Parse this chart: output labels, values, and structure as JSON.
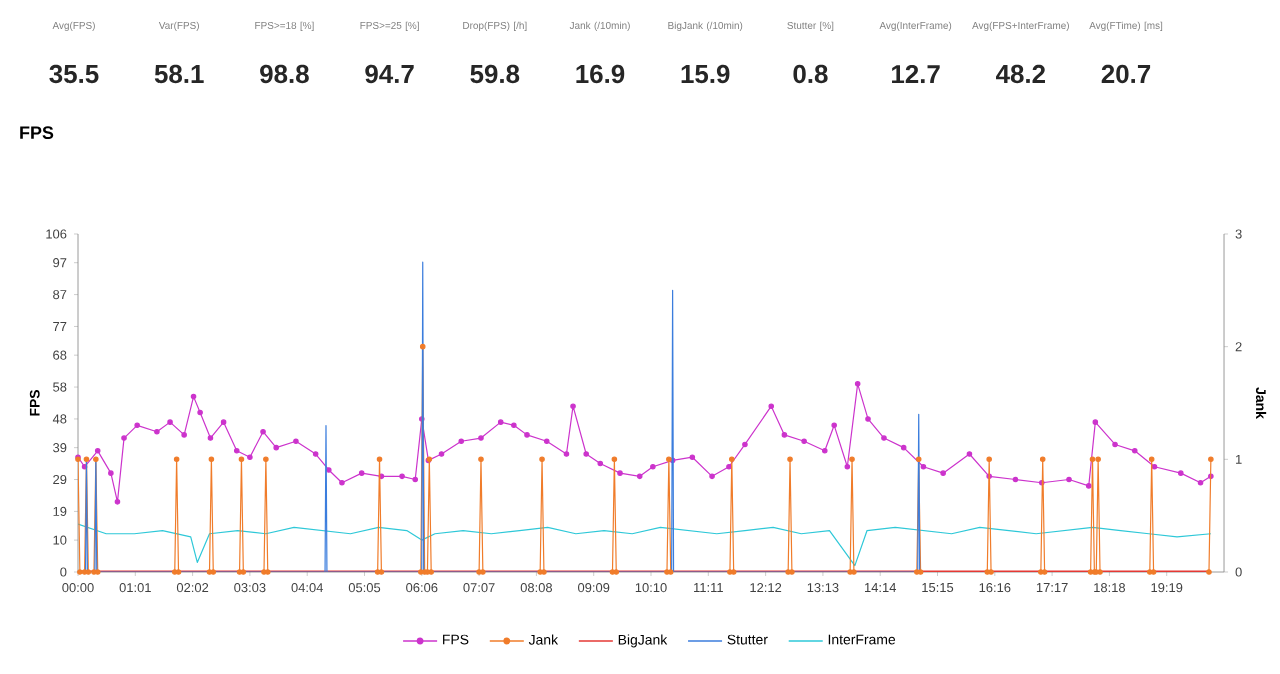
{
  "chart_data": [
    {
      "type": "other",
      "categories": [
        "Avg(FPS)",
        "Var(FPS)",
        "FPS>=18 [%]",
        "FPS>=25 [%]",
        "Drop(FPS) [/h]",
        "Jank (/10min)",
        "BigJank (/10min)",
        "Stutter [%]",
        "Avg(InterFrame)",
        "Avg(FPS+InterFrame)",
        "Avg(FTime) [ms]"
      ],
      "values": [
        35.5,
        58.1,
        98.8,
        94.7,
        59.8,
        16.9,
        15.9,
        0.8,
        12.7,
        48.2,
        20.7
      ],
      "data_labels": true
    },
    {
      "type": "line",
      "title": "FPS",
      "ylabel": "FPS",
      "y2label": "Jank",
      "xlim": [
        0,
        1220
      ],
      "ylim": [
        0,
        106
      ],
      "y2lim": [
        0,
        3
      ],
      "xticks": [
        {
          "value": 0,
          "label": "00:00"
        },
        {
          "value": 61,
          "label": "01:01"
        },
        {
          "value": 122,
          "label": "02:02"
        },
        {
          "value": 183,
          "label": "03:03"
        },
        {
          "value": 244,
          "label": "04:04"
        },
        {
          "value": 305,
          "label": "05:05"
        },
        {
          "value": 366,
          "label": "06:06"
        },
        {
          "value": 427,
          "label": "07:07"
        },
        {
          "value": 488,
          "label": "08:08"
        },
        {
          "value": 549,
          "label": "09:09"
        },
        {
          "value": 610,
          "label": "10:10"
        },
        {
          "value": 671,
          "label": "11:11"
        },
        {
          "value": 732,
          "label": "12:12"
        },
        {
          "value": 793,
          "label": "13:13"
        },
        {
          "value": 854,
          "label": "14:14"
        },
        {
          "value": 915,
          "label": "15:15"
        },
        {
          "value": 976,
          "label": "16:16"
        },
        {
          "value": 1037,
          "label": "17:17"
        },
        {
          "value": 1098,
          "label": "18:18"
        },
        {
          "value": 1159,
          "label": "19:19"
        }
      ],
      "yticks": [
        0,
        10,
        19,
        29,
        39,
        48,
        58,
        68,
        77,
        87,
        97,
        106
      ],
      "y2ticks": [
        0,
        1,
        2,
        3
      ],
      "legend": "bottom",
      "series": [
        {
          "name": "FPS",
          "color": "#cc33cc",
          "marker": "circle",
          "x": [
            0,
            7,
            21,
            35,
            42,
            49,
            63,
            84,
            98,
            113,
            123,
            130,
            141,
            155,
            169,
            183,
            197,
            211,
            232,
            253,
            267,
            281,
            302,
            323,
            345,
            359,
            366,
            373,
            387,
            408,
            429,
            450,
            464,
            478,
            499,
            520,
            527,
            541,
            556,
            577,
            598,
            612,
            633,
            654,
            675,
            693,
            710,
            738,
            752,
            773,
            795,
            805,
            819,
            830,
            841,
            858,
            879,
            900,
            921,
            949,
            970,
            998,
            1026,
            1055,
            1076,
            1083,
            1104,
            1125,
            1146,
            1174,
            1195,
            1206
          ],
          "values": [
            36,
            33,
            38,
            31,
            22,
            42,
            46,
            44,
            47,
            43,
            55,
            50,
            42,
            47,
            38,
            36,
            44,
            39,
            41,
            37,
            32,
            28,
            31,
            30,
            30,
            29,
            48,
            35,
            37,
            41,
            42,
            47,
            46,
            43,
            41,
            37,
            52,
            37,
            34,
            31,
            30,
            33,
            35,
            36,
            30,
            33,
            40,
            52,
            43,
            41,
            38,
            46,
            33,
            59,
            48,
            42,
            39,
            33,
            31,
            37,
            30,
            29,
            28,
            29,
            27,
            47,
            40,
            38,
            33,
            31,
            28,
            30
          ]
        },
        {
          "name": "Jank",
          "color": "#f07c2a",
          "marker": "circle",
          "axis": "y2",
          "x": [
            0,
            2,
            7,
            9,
            11,
            17,
            19,
            21,
            103,
            105,
            107,
            140,
            142,
            144,
            172,
            174,
            176,
            198,
            200,
            202,
            319,
            321,
            323,
            365,
            367,
            369,
            372,
            374,
            376,
            427,
            429,
            431,
            492,
            494,
            496,
            569,
            571,
            573,
            627,
            629,
            631,
            694,
            696,
            698,
            756,
            758,
            760,
            822,
            824,
            826,
            893,
            895,
            897,
            968,
            970,
            972,
            1025,
            1027,
            1029,
            1078,
            1080,
            1082,
            1084,
            1086,
            1088,
            1141,
            1143,
            1145,
            1204,
            1206
          ],
          "values": [
            1,
            0,
            0,
            1,
            0,
            0,
            1,
            0,
            0,
            1,
            0,
            0,
            1,
            0,
            0,
            1,
            0,
            0,
            1,
            0,
            0,
            1,
            0,
            0,
            2,
            0,
            0,
            1,
            0,
            0,
            1,
            0,
            0,
            1,
            0,
            0,
            1,
            0,
            0,
            1,
            0,
            0,
            1,
            0,
            0,
            1,
            0,
            0,
            1,
            0,
            0,
            1,
            0,
            0,
            1,
            0,
            0,
            1,
            0,
            0,
            1,
            0,
            0,
            1,
            0,
            0,
            1,
            0,
            0,
            1
          ]
        },
        {
          "name": "BigJank",
          "color": "#e53935",
          "marker": "none",
          "axis": "y2",
          "x": [
            0,
            1206
          ],
          "values": [
            0,
            0
          ]
        },
        {
          "name": "Stutter",
          "color": "#3b7ddd",
          "marker": "none",
          "axis": "y2",
          "x": [
            0,
            8,
            9,
            10,
            18,
            19,
            20,
            263,
            264,
            265,
            366,
            367,
            368,
            632,
            633,
            634,
            894,
            895,
            896
          ],
          "values": [
            0,
            0,
            1,
            0,
            0,
            1,
            0,
            0,
            1.3,
            0,
            0,
            2.75,
            0,
            0,
            2.5,
            0,
            0,
            1.4,
            0
          ]
        },
        {
          "name": "InterFrame",
          "color": "#2ec8d8",
          "marker": "none",
          "x": [
            0,
            30,
            60,
            90,
            120,
            127,
            140,
            170,
            200,
            230,
            260,
            290,
            320,
            350,
            366,
            380,
            410,
            440,
            470,
            500,
            530,
            560,
            590,
            620,
            650,
            680,
            710,
            740,
            770,
            800,
            827,
            840,
            870,
            900,
            930,
            960,
            990,
            1020,
            1050,
            1080,
            1110,
            1140,
            1170,
            1206
          ],
          "values": [
            15,
            12,
            12,
            13,
            11,
            3,
            12,
            13,
            12,
            14,
            13,
            12,
            14,
            13,
            10,
            12,
            13,
            12,
            13,
            14,
            12,
            13,
            12,
            14,
            13,
            12,
            13,
            14,
            12,
            13,
            2,
            13,
            14,
            13,
            12,
            14,
            13,
            12,
            13,
            14,
            13,
            12,
            11,
            12
          ]
        }
      ]
    }
  ]
}
